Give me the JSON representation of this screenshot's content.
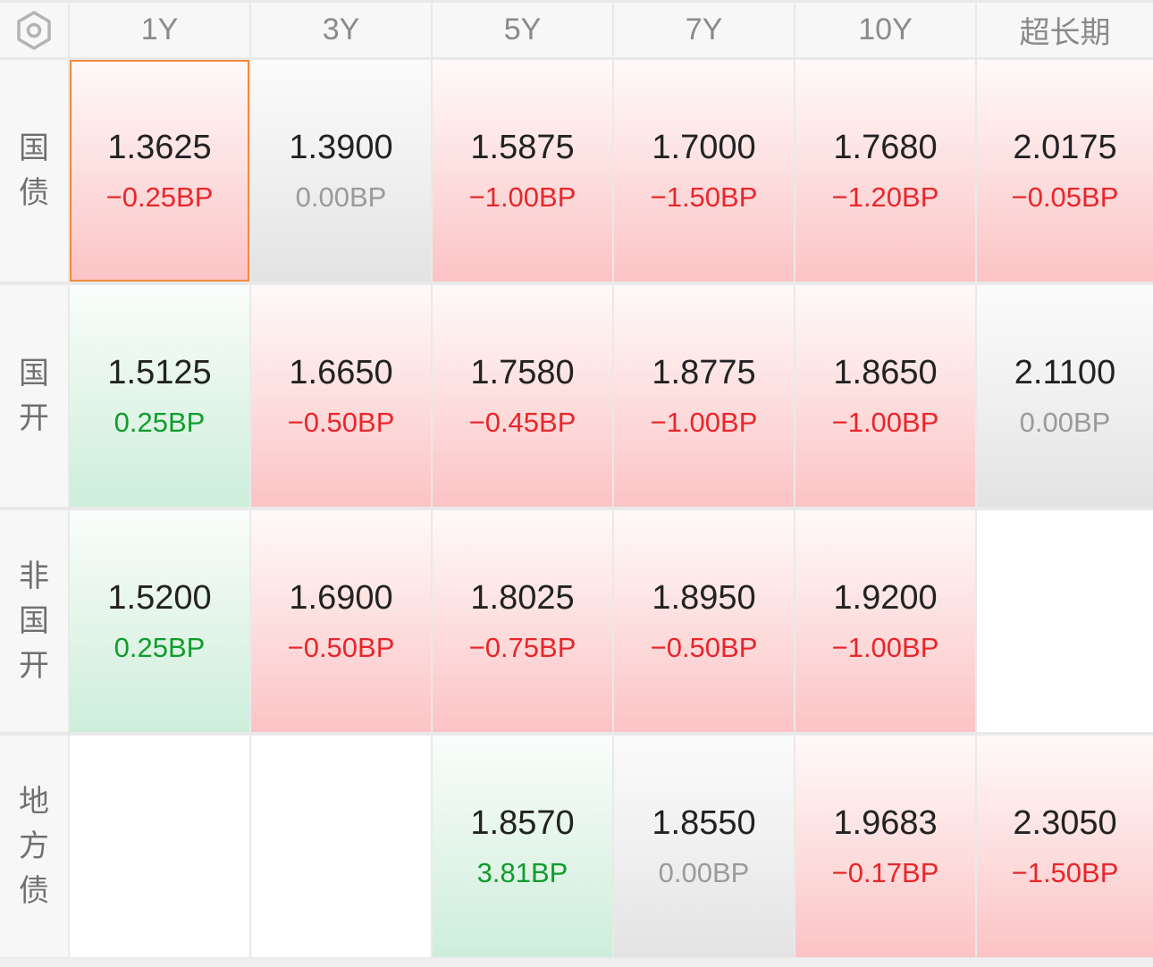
{
  "colors": {
    "down_text": "#e8262b",
    "up_text": "#109c2c",
    "flat_text": "#9a9a9a",
    "selected_border": "#f08a3e"
  },
  "settings_icon": "hexagon-settings-icon",
  "columns": [
    "1Y",
    "3Y",
    "5Y",
    "7Y",
    "10Y",
    "超长期"
  ],
  "rows": [
    {
      "label": [
        "国",
        "债"
      ],
      "cells": [
        {
          "rate": "1.3625",
          "change": "−0.25BP",
          "trend": "down",
          "selected": true
        },
        {
          "rate": "1.3900",
          "change": "0.00BP",
          "trend": "flat"
        },
        {
          "rate": "1.5875",
          "change": "−1.00BP",
          "trend": "down"
        },
        {
          "rate": "1.7000",
          "change": "−1.50BP",
          "trend": "down"
        },
        {
          "rate": "1.7680",
          "change": "−1.20BP",
          "trend": "down"
        },
        {
          "rate": "2.0175",
          "change": "−0.05BP",
          "trend": "down"
        }
      ]
    },
    {
      "label": [
        "国",
        "开"
      ],
      "cells": [
        {
          "rate": "1.5125",
          "change": "0.25BP",
          "trend": "up"
        },
        {
          "rate": "1.6650",
          "change": "−0.50BP",
          "trend": "down"
        },
        {
          "rate": "1.7580",
          "change": "−0.45BP",
          "trend": "down"
        },
        {
          "rate": "1.8775",
          "change": "−1.00BP",
          "trend": "down"
        },
        {
          "rate": "1.8650",
          "change": "−1.00BP",
          "trend": "down"
        },
        {
          "rate": "2.1100",
          "change": "0.00BP",
          "trend": "flat"
        }
      ]
    },
    {
      "label": [
        "非",
        "国",
        "开"
      ],
      "cells": [
        {
          "rate": "1.5200",
          "change": "0.25BP",
          "trend": "up"
        },
        {
          "rate": "1.6900",
          "change": "−0.50BP",
          "trend": "down"
        },
        {
          "rate": "1.8025",
          "change": "−0.75BP",
          "trend": "down"
        },
        {
          "rate": "1.8950",
          "change": "−0.50BP",
          "trend": "down"
        },
        {
          "rate": "1.9200",
          "change": "−1.00BP",
          "trend": "down"
        },
        null
      ]
    },
    {
      "label": [
        "地",
        "方",
        "债"
      ],
      "cells": [
        null,
        null,
        {
          "rate": "1.8570",
          "change": "3.81BP",
          "trend": "up"
        },
        {
          "rate": "1.8550",
          "change": "0.00BP",
          "trend": "flat"
        },
        {
          "rate": "1.9683",
          "change": "−0.17BP",
          "trend": "down"
        },
        {
          "rate": "2.3050",
          "change": "−1.50BP",
          "trend": "down"
        }
      ]
    }
  ]
}
